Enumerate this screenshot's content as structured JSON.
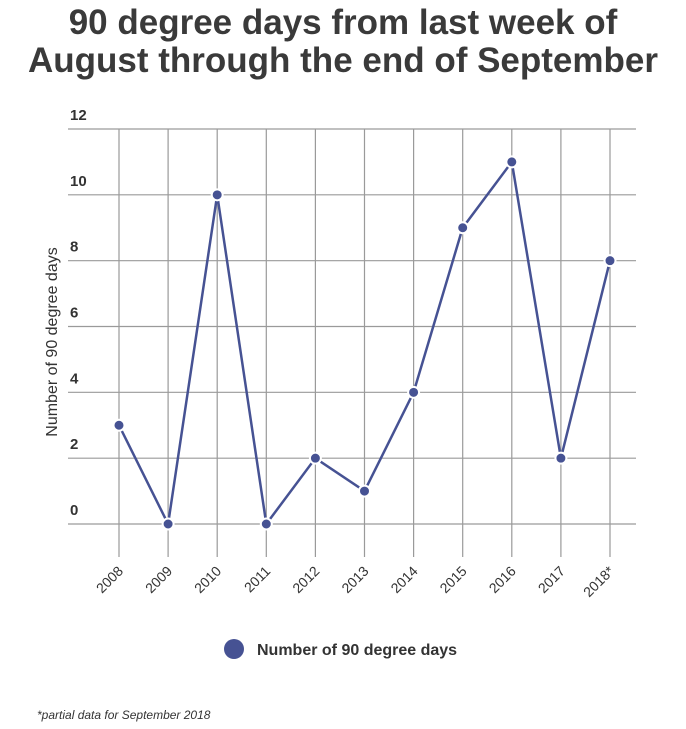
{
  "chart_data": {
    "type": "line",
    "title_lines": [
      "90 degree days from last week of",
      "August through the end of September"
    ],
    "categories": [
      "2008",
      "2009",
      "2010",
      "2011",
      "2012",
      "2013",
      "2014",
      "2015",
      "2016",
      "2017",
      "2018*"
    ],
    "series": [
      {
        "name": "Number of 90 degree days",
        "values": [
          3,
          0,
          10,
          0,
          2,
          1,
          4,
          9,
          11,
          2,
          8
        ],
        "color": "#465293"
      }
    ],
    "xlabel": "",
    "ylabel": "Number of 90 degree days",
    "ylim": [
      0,
      12
    ],
    "yticks": [
      0,
      2,
      4,
      6,
      8,
      10,
      12
    ],
    "grid": true,
    "legend_position": "bottom"
  },
  "footnote": "*partial data for September 2018"
}
